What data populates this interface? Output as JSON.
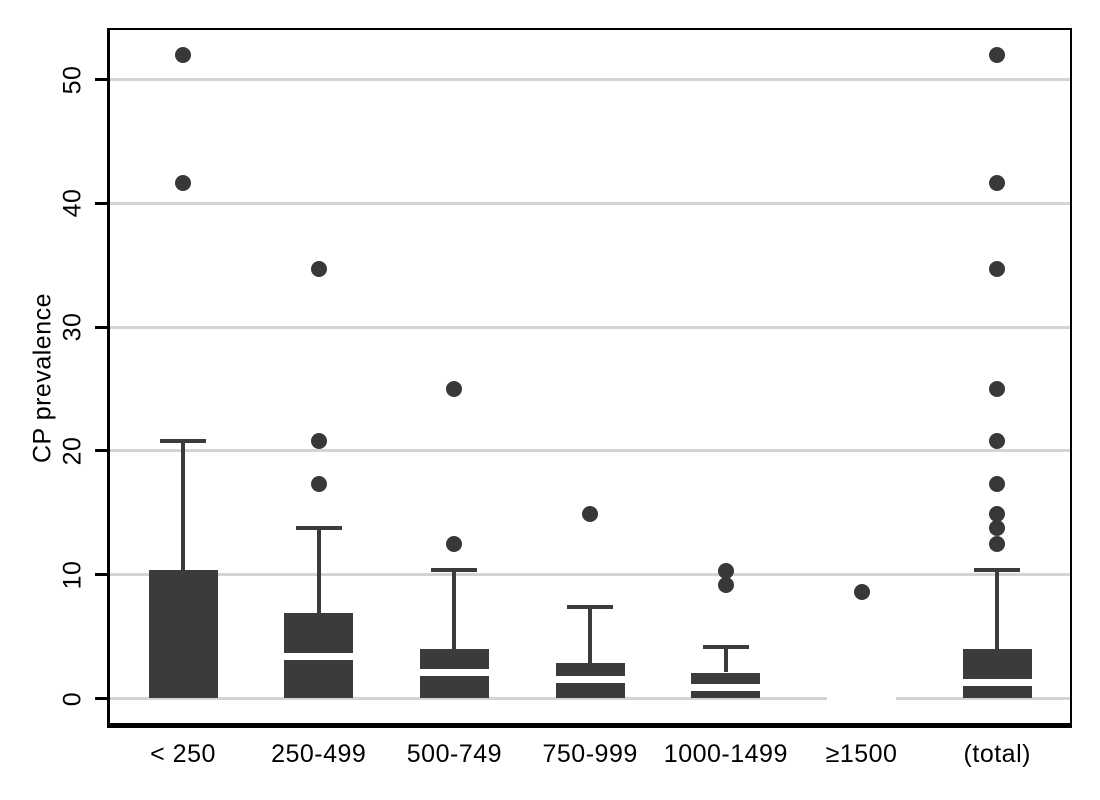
{
  "figure": {
    "background": "#ffffff",
    "colors": {
      "box_fill": "#3b3b3b",
      "whisker": "#3b3b3b",
      "outlier": "#383838",
      "median_line": "#ffffff",
      "gridline": "#d4d4d4",
      "frame": "#000000",
      "text": "#000000"
    }
  },
  "chart_data": {
    "type": "boxplot",
    "title": "",
    "xlabel": "",
    "ylabel": "CP prevalence",
    "ylim": [
      0,
      54
    ],
    "y_ticks": [
      0,
      10,
      20,
      30,
      40,
      50
    ],
    "grid": true,
    "legend": "none",
    "categories": [
      "< 250",
      "250-499",
      "500-749",
      "750-999",
      "1000-1499",
      "≥1500",
      "(total)"
    ],
    "groups": [
      {
        "label": "< 250",
        "q1": 0,
        "median": 0,
        "q3": 10.4,
        "whisker_low": 0,
        "whisker_high": 20.8,
        "outliers": [
          41.6,
          52.0
        ]
      },
      {
        "label": "250-499",
        "q1": 0,
        "median": 3.4,
        "q3": 6.9,
        "whisker_low": 0,
        "whisker_high": 13.8,
        "outliers": [
          17.3,
          20.8,
          34.7
        ]
      },
      {
        "label": "500-749",
        "q1": 0,
        "median": 2.1,
        "q3": 4.0,
        "whisker_low": 0,
        "whisker_high": 10.4,
        "outliers": [
          12.5,
          25.0
        ]
      },
      {
        "label": "750-999",
        "q1": 0,
        "median": 1.5,
        "q3": 2.9,
        "whisker_low": 0,
        "whisker_high": 7.4,
        "outliers": [
          14.9
        ]
      },
      {
        "label": "1000-1499",
        "q1": 0,
        "median": 0.9,
        "q3": 2.1,
        "whisker_low": 0,
        "whisker_high": 4.2,
        "outliers": [
          9.2,
          10.3
        ]
      },
      {
        "label": "≥1500",
        "q1": 0,
        "median": 0,
        "q3": 0,
        "whisker_low": 0,
        "whisker_high": 0,
        "outliers": [
          8.6
        ]
      },
      {
        "label": "(total)",
        "q1": 0,
        "median": 1.3,
        "q3": 4.0,
        "whisker_low": 0,
        "whisker_high": 10.4,
        "outliers": [
          12.5,
          13.8,
          14.9,
          17.3,
          20.8,
          25.0,
          34.7,
          41.6,
          52.0
        ]
      }
    ]
  }
}
